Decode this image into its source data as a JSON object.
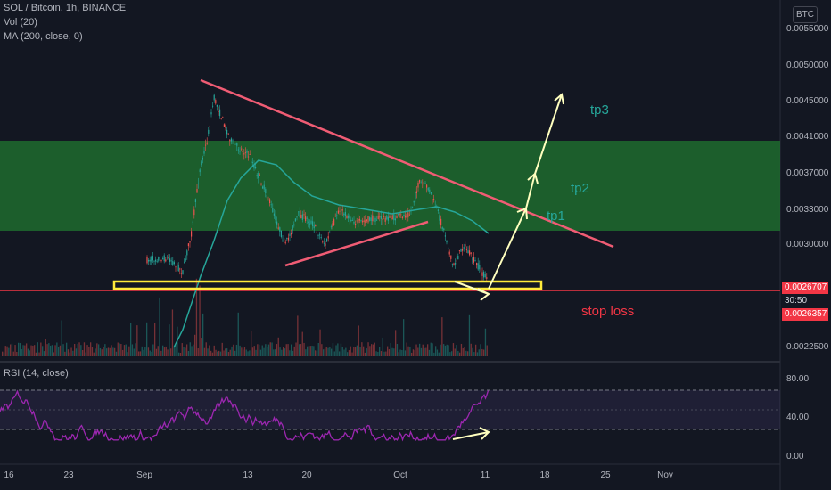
{
  "header": {
    "symbol_line": "SOL / Bitcoin, 1h, BINANCE",
    "volume_line": "Vol (20)",
    "ma_line": "MA (200, close, 0)"
  },
  "currency": "BTC",
  "price_axis": {
    "labels": [
      "0.0055000",
      "0.0050000",
      "0.0045000",
      "0.0041000",
      "0.0037000",
      "0.0033000",
      "0.0030000",
      "0.0022500"
    ]
  },
  "price_tags": {
    "last_price": "0.0026707",
    "countdown": "30:50",
    "ma_price": "0.0026357"
  },
  "rsi": {
    "label": "RSI (14, close)",
    "axis_labels": [
      "80.00",
      "40.00",
      "0.00"
    ],
    "upper_band": 70,
    "lower_band": 30
  },
  "time_axis": {
    "labels": [
      "16",
      "23",
      "Sep",
      "13",
      "20",
      "Oct",
      "11",
      "18",
      "25",
      "Nov"
    ]
  },
  "annotations": {
    "tp1": "tp1",
    "tp2": "tp2",
    "tp3": "tp3",
    "stop_loss": "stop loss"
  },
  "colors": {
    "background": "#131722",
    "up": "#26a69a",
    "down": "#ef5350",
    "target_zone": "#1f6b2e",
    "trendline": "#f05c74",
    "support_zone": "#ffeb3b",
    "projection_arrow": "#ffffbf",
    "ma_line": "#26a69a",
    "rsi_line": "#9c27b0",
    "stop_loss_text": "#f23645",
    "target_text": "#26a69a"
  }
}
